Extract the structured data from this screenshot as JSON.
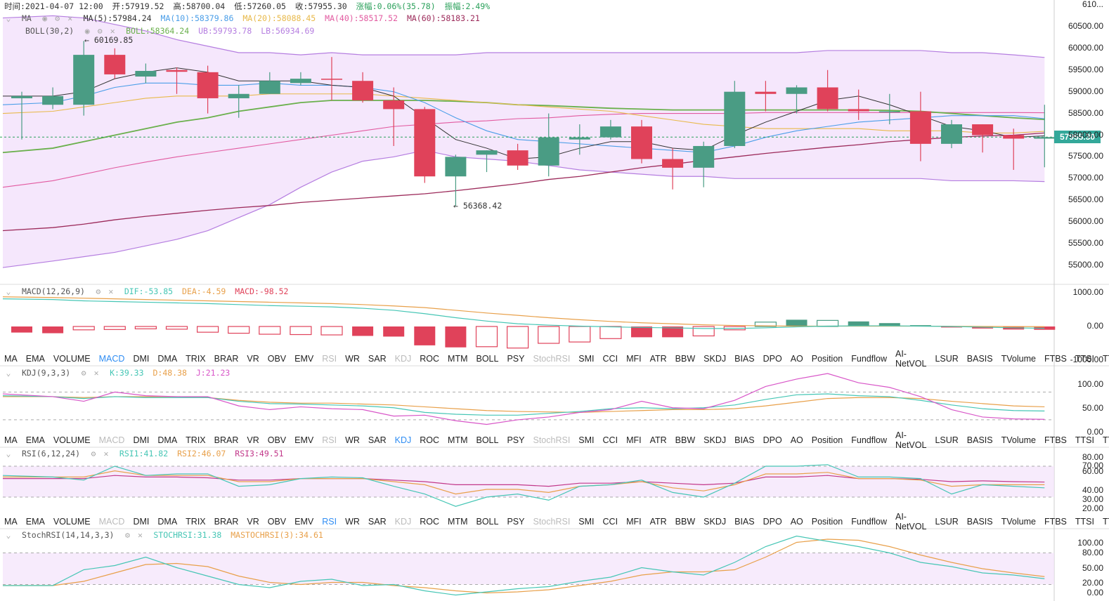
{
  "header": {
    "time": "时间:2021-04-07 12:00",
    "open": "开:57919.52",
    "high": "高:58700.04",
    "low": "低:57260.05",
    "close": "收:57955.30",
    "change": "涨幅:0.06%(35.78)",
    "amplitude": "振幅:2.49%"
  },
  "legend": {
    "ma": {
      "name": "MA",
      "ma5": "MA(5):57984.24",
      "ma10": "MA(10):58379.86",
      "ma20": "MA(20):58088.45",
      "ma40": "MA(40):58517.52",
      "ma60": "MA(60):58183.21"
    },
    "boll": {
      "name": "BOLL(30,2)",
      "boll": "BOLL:58364.24",
      "ub": "UB:59793.78",
      "lb": "LB:56934.69"
    },
    "macd": {
      "name": "MACD(12,26,9)",
      "dif": "DIF:-53.85",
      "dea": "DEA:-4.59",
      "macd": "MACD:-98.52"
    },
    "kdj": {
      "name": "KDJ(9,3,3)",
      "k": "K:39.33",
      "d": "D:48.38",
      "j": "J:21.23"
    },
    "rsi": {
      "name": "RSI(6,12,24)",
      "rsi1": "RSI1:41.82",
      "rsi2": "RSI2:46.07",
      "rsi3": "RSI3:49.51"
    },
    "stochrsi": {
      "name": "StochRSI(14,14,3,3)",
      "stochrsi": "STOCHRSI:31.38",
      "mastochrsi": "MASTOCHRSI(3):34.61"
    }
  },
  "annotations": {
    "high": "60169.85",
    "low": "56368.42"
  },
  "last_price": "57955.30",
  "price_axis": [
    "610...",
    "60500.00",
    "60000.00",
    "59500.00",
    "59000.00",
    "58500.00",
    "58000.00",
    "57500.00",
    "57000.00",
    "56500.00",
    "56000.00",
    "55500.00",
    "55000.00"
  ],
  "macd_axis": [
    "1000.00",
    "0.00",
    "-1000.00"
  ],
  "kdj_axis": [
    "100.00",
    "50.00",
    "0.00"
  ],
  "rsi_axis": [
    "80.00",
    "70.00",
    "60.00",
    "40.00",
    "30.00",
    "20.00"
  ],
  "stoch_axis": [
    "100.00",
    "80.00",
    "50.00",
    "20.00",
    "0.00"
  ],
  "indicators": [
    "MA",
    "EMA",
    "VOLUME",
    "MACD",
    "DMI",
    "DMA",
    "TRIX",
    "BRAR",
    "VR",
    "OBV",
    "EMV",
    "RSI",
    "WR",
    "SAR",
    "KDJ",
    "ROC",
    "MTM",
    "BOLL",
    "PSY",
    "StochRSI",
    "SMI",
    "CCI",
    "MFI",
    "ATR",
    "BBW",
    "SKDJ",
    "BIAS",
    "DPO",
    "AO",
    "Position",
    "Fundflow",
    "AI-NetVOL",
    "LSUR",
    "BASIS",
    "TVolume",
    "FTBS",
    "TTSI",
    "TTMU"
  ],
  "colors": {
    "up": "#4a9c84",
    "down": "#e0425a",
    "ma5": "#333333",
    "ma10": "#4a9ee8",
    "ma20": "#e8b94a",
    "ma40": "#e25aa0",
    "ma60": "#9c2a5a",
    "bollmid": "#6ab04c",
    "bollband": "#b57ee0",
    "bollfill": "#f3e3fb",
    "dif": "#46c6b5",
    "dea": "#e8a04a",
    "k": "#46c6b5",
    "d": "#e8a04a",
    "j": "#d856c8",
    "rsi1": "#46c6b5",
    "rsi2": "#e8a04a",
    "rsi3": "#c2388a"
  },
  "chart_data": {
    "type": "candlestick",
    "candles": [
      {
        "o": 58850,
        "c": 58900,
        "h": 59000,
        "l": 57900
      },
      {
        "o": 58700,
        "c": 58900,
        "h": 59100,
        "l": 58600
      },
      {
        "o": 58700,
        "c": 59850,
        "h": 60169.85,
        "l": 58450
      },
      {
        "o": 59850,
        "c": 59400,
        "h": 60000,
        "l": 59300
      },
      {
        "o": 59350,
        "c": 59480,
        "h": 59650,
        "l": 59200
      },
      {
        "o": 59500,
        "c": 59460,
        "h": 59560,
        "l": 58950
      },
      {
        "o": 59450,
        "c": 58850,
        "h": 59600,
        "l": 58500
      },
      {
        "o": 58850,
        "c": 58950,
        "h": 59150,
        "l": 58400
      },
      {
        "o": 58950,
        "c": 59250,
        "h": 59450,
        "l": 58950
      },
      {
        "o": 59200,
        "c": 59300,
        "h": 59450,
        "l": 59150
      },
      {
        "o": 59300,
        "c": 59280,
        "h": 59800,
        "l": 58800
      },
      {
        "o": 59250,
        "c": 58800,
        "h": 59450,
        "l": 58750
      },
      {
        "o": 58800,
        "c": 58600,
        "h": 59100,
        "l": 57750
      },
      {
        "o": 58600,
        "c": 57050,
        "h": 58650,
        "l": 56900
      },
      {
        "o": 57050,
        "c": 57500,
        "h": 57550,
        "l": 56368.42
      },
      {
        "o": 57550,
        "c": 57650,
        "h": 57650,
        "l": 57150
      },
      {
        "o": 57650,
        "c": 57300,
        "h": 57800,
        "l": 57200
      },
      {
        "o": 57300,
        "c": 57950,
        "h": 58500,
        "l": 57050
      },
      {
        "o": 57900,
        "c": 57950,
        "h": 58250,
        "l": 57550
      },
      {
        "o": 57950,
        "c": 58200,
        "h": 58350,
        "l": 57900
      },
      {
        "o": 58200,
        "c": 57450,
        "h": 58350,
        "l": 57350
      },
      {
        "o": 57450,
        "c": 57250,
        "h": 57700,
        "l": 56750
      },
      {
        "o": 57250,
        "c": 57750,
        "h": 57850,
        "l": 56800
      },
      {
        "o": 57750,
        "c": 59000,
        "h": 59250,
        "l": 57700
      },
      {
        "o": 59000,
        "c": 58950,
        "h": 59250,
        "l": 58550
      },
      {
        "o": 58950,
        "c": 59100,
        "h": 59150,
        "l": 58500
      },
      {
        "o": 59100,
        "c": 58600,
        "h": 59500,
        "l": 58550
      },
      {
        "o": 58600,
        "c": 58550,
        "h": 59050,
        "l": 58350
      },
      {
        "o": 58550,
        "c": 58550,
        "h": 58950,
        "l": 58250
      },
      {
        "o": 58550,
        "c": 57800,
        "h": 59000,
        "l": 57400
      },
      {
        "o": 57800,
        "c": 58250,
        "h": 58350,
        "l": 57700
      },
      {
        "o": 58250,
        "c": 58000,
        "h": 58250,
        "l": 57600
      },
      {
        "o": 58000,
        "c": 57920,
        "h": 58150,
        "l": 57200
      },
      {
        "o": 57919.52,
        "c": 57955.3,
        "h": 58700.04,
        "l": 57260.05
      }
    ]
  }
}
